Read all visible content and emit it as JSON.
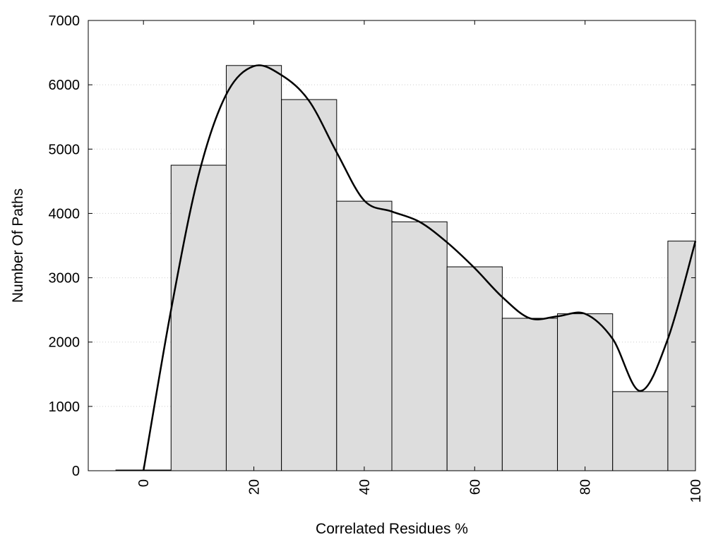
{
  "chart_data": {
    "type": "bar",
    "title": "",
    "xlabel": "Correlated Residues %",
    "ylabel": "Number Of Paths",
    "xlim": [
      -10,
      100
    ],
    "ylim": [
      0,
      7000
    ],
    "x_ticks": [
      0,
      20,
      40,
      60,
      80,
      100
    ],
    "x_tick_labels": [
      "0",
      "20",
      "40",
      "60",
      "80",
      "100"
    ],
    "y_ticks": [
      0,
      1000,
      2000,
      3000,
      4000,
      5000,
      6000,
      7000
    ],
    "y_tick_labels": [
      "0",
      "1000",
      "2000",
      "3000",
      "4000",
      "5000",
      "6000",
      "7000"
    ],
    "grid": "horizontal dotted",
    "legend": "none",
    "bar_width": 10,
    "bars": [
      {
        "x": 0,
        "value": 0
      },
      {
        "x": 10,
        "value": 4750
      },
      {
        "x": 20,
        "value": 6300
      },
      {
        "x": 30,
        "value": 5770
      },
      {
        "x": 40,
        "value": 4190
      },
      {
        "x": 50,
        "value": 3870
      },
      {
        "x": 60,
        "value": 3170
      },
      {
        "x": 70,
        "value": 2370
      },
      {
        "x": 80,
        "value": 2440
      },
      {
        "x": 90,
        "value": 1230
      },
      {
        "x": 100,
        "value": 3570
      }
    ],
    "curve": [
      [
        0,
        0
      ],
      [
        5,
        2500
      ],
      [
        10,
        4600
      ],
      [
        15,
        5850
      ],
      [
        20,
        6290
      ],
      [
        25,
        6150
      ],
      [
        30,
        5750
      ],
      [
        35,
        4950
      ],
      [
        40,
        4200
      ],
      [
        45,
        4030
      ],
      [
        50,
        3870
      ],
      [
        55,
        3550
      ],
      [
        60,
        3150
      ],
      [
        65,
        2700
      ],
      [
        70,
        2370
      ],
      [
        75,
        2400
      ],
      [
        80,
        2440
      ],
      [
        85,
        2050
      ],
      [
        90,
        1240
      ],
      [
        95,
        2050
      ],
      [
        100,
        3570
      ]
    ],
    "colors": {
      "bar_fill": "#dddddd",
      "bar_stroke": "#000000",
      "curve": "#000000",
      "grid": "#cccccc"
    }
  }
}
